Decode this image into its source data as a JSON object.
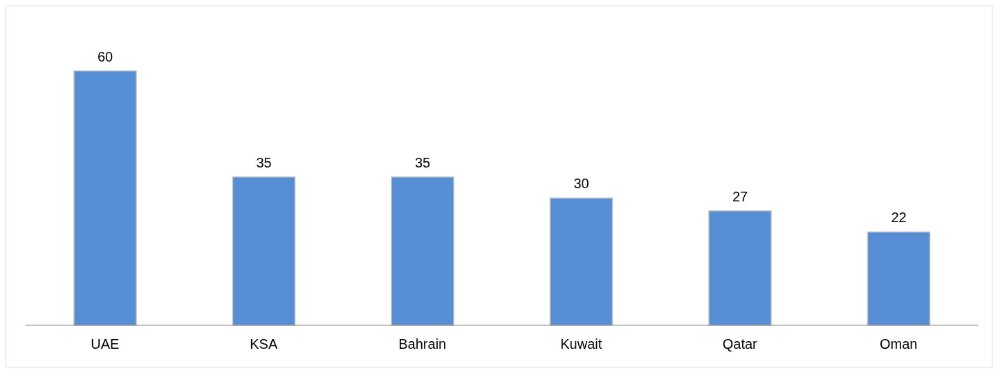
{
  "chart_data": {
    "type": "bar",
    "categories": [
      "UAE",
      "KSA",
      "Bahrain",
      "Kuwait",
      "Qatar",
      "Oman"
    ],
    "values": [
      60,
      35,
      35,
      30,
      27,
      22
    ],
    "color": "#558ed5",
    "data_labels": true,
    "tick_labels": "x"
  }
}
